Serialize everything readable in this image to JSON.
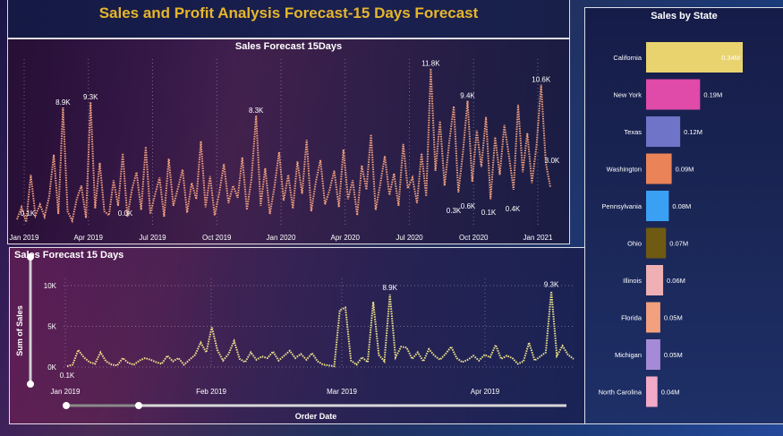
{
  "page_title": "Sales and Profit Analysis Forecast-15 Days Forecast",
  "chart_data": [
    {
      "type": "line",
      "title": "Sales Forecast 15Days",
      "x_tick_labels": [
        "Jan 2019",
        "Apr 2019",
        "Jul 2019",
        "Oct 2019",
        "Jan 2020",
        "Apr 2020",
        "Jul 2020",
        "Oct 2020",
        "Jan 2021"
      ],
      "data_labels": [
        "8.9K",
        "9.3K",
        "8.3K",
        "11.8K",
        "9.4K",
        "10.6K",
        "0.1K",
        "0.0K",
        "0.3K",
        "0.6K",
        "0.1K",
        "0.4K",
        "3.0K"
      ],
      "color": "#f2a07e",
      "series": [
        {
          "values": [
            600,
            1500,
            400,
            3900,
            900,
            1700,
            800,
            2300,
            5400,
            1000,
            8900,
            1200,
            500,
            2100,
            3100,
            700,
            9300,
            1400,
            4800,
            1200,
            900,
            3500,
            1600,
            5500,
            800,
            2800,
            4100,
            1300,
            6000,
            1000,
            2400,
            3700,
            800,
            5100,
            1600,
            2900,
            4300,
            1100,
            3300,
            2100,
            6400,
            1500,
            3800,
            900,
            2600,
            4700,
            1800,
            3100,
            2200,
            5200,
            1300,
            3600,
            8300,
            1600,
            4400,
            1000,
            3000,
            5600,
            2000,
            3900,
            1400,
            4900,
            2500,
            6500,
            1200,
            3400,
            5000,
            1700,
            2800,
            4200,
            1500,
            5800,
            2100,
            3500,
            900,
            4600,
            2800,
            6900,
            1300,
            3200,
            5300,
            2400,
            4000,
            1600,
            6200,
            2900,
            3700,
            1800,
            5500,
            2300,
            11800,
            4200,
            7900,
            3100,
            6300,
            9000,
            2600,
            5600,
            9400,
            3400,
            7200,
            4500,
            8200,
            2100,
            6700,
            3900,
            7600,
            5300,
            2800,
            9100,
            4100,
            7000,
            3300,
            6100,
            10600,
            4800,
            3000
          ]
        }
      ]
    },
    {
      "type": "line",
      "title": "Sales Forecast 15 Days",
      "xlabel": "Order Date",
      "ylabel": "Sum of Sales",
      "y_tick_labels": [
        "10K",
        "5K",
        "0K"
      ],
      "x_tick_labels": [
        "Jan 2019",
        "Feb 2019",
        "Mar 2019",
        "Apr 2019"
      ],
      "ylim": [
        0,
        10000
      ],
      "data_labels": [
        "8.9K",
        "9.3K",
        "0.1K"
      ],
      "color": "#f3e68a",
      "series": [
        {
          "values": [
            100,
            300,
            2100,
            1200,
            600,
            400,
            1800,
            700,
            300,
            200,
            1100,
            500,
            300,
            800,
            1100,
            900,
            600,
            400,
            1400,
            700,
            1100,
            300,
            900,
            1500,
            3000,
            1800,
            4900,
            2100,
            800,
            1600,
            3200,
            1000,
            600,
            1800,
            900,
            1300,
            1100,
            1900,
            800,
            1400,
            2000,
            1100,
            1600,
            900,
            1700,
            700,
            300,
            200,
            100,
            7000,
            7300,
            800,
            300,
            1200,
            600,
            8000,
            1500,
            700,
            8900,
            1200,
            2500,
            2400,
            1000,
            1800,
            700,
            2200,
            1400,
            900,
            1600,
            2500,
            1100,
            600,
            900,
            1400,
            800,
            1500,
            1200,
            2700,
            1000,
            1400,
            1100,
            400,
            700,
            3000,
            800,
            1300,
            1800,
            9300,
            1400,
            2600,
            1500,
            1000
          ]
        }
      ]
    },
    {
      "type": "bar",
      "title": "Sales by State",
      "orientation": "horizontal",
      "categories": [
        "California",
        "New York",
        "Texas",
        "Washington",
        "Pennsylvania",
        "Ohio",
        "Illinois",
        "Florida",
        "Michigan",
        "North Carolina"
      ],
      "values": [
        0.34,
        0.19,
        0.12,
        0.09,
        0.08,
        0.07,
        0.06,
        0.05,
        0.05,
        0.04
      ],
      "labels": [
        "0.34M",
        "0.19M",
        "0.12M",
        "0.09M",
        "0.08M",
        "0.07M",
        "0.06M",
        "0.05M",
        "0.05M",
        "0.04M"
      ],
      "colors": [
        "#e8d36f",
        "#e04aa9",
        "#6f74c8",
        "#ea8357",
        "#3aa0f3",
        "#6e5a12",
        "#eeb0b4",
        "#f2a07e",
        "#a68ad8",
        "#f2aac8"
      ],
      "xlim": [
        0,
        0.34
      ]
    }
  ]
}
